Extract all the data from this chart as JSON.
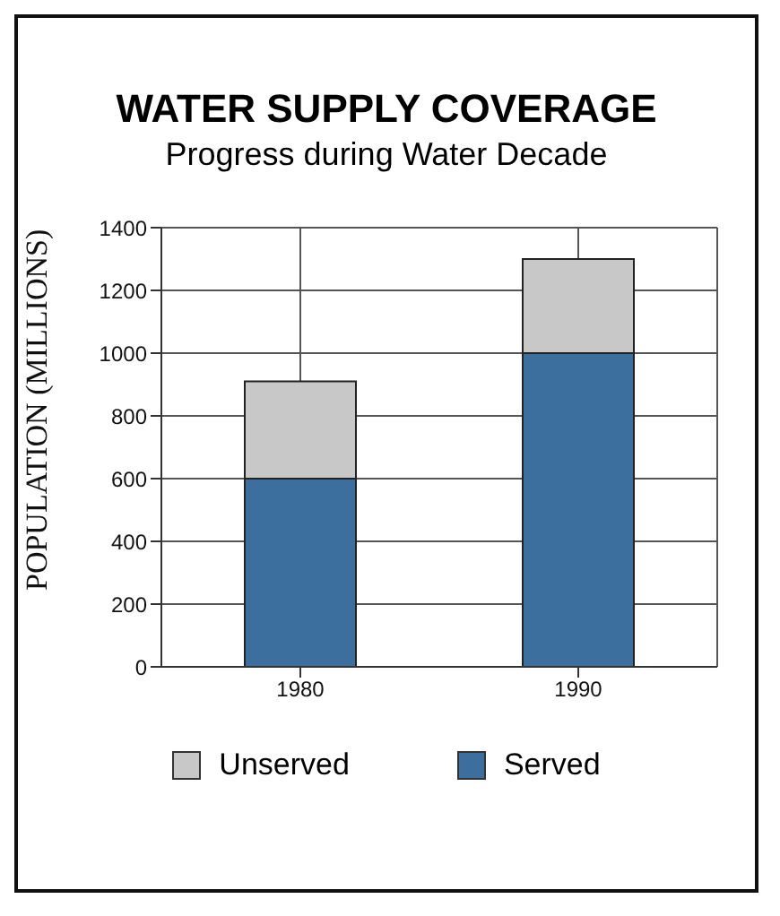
{
  "chart_data": {
    "type": "bar",
    "title": "WATER SUPPLY COVERAGE",
    "subtitle": "Progress during Water Decade",
    "ylabel": "POPULATION (MILLIONS)",
    "categories": [
      "1980",
      "1990"
    ],
    "stacked": true,
    "series": [
      {
        "name": "Served",
        "color": "#3d6f9e",
        "values": [
          600,
          1000
        ]
      },
      {
        "name": "Unserved",
        "color": "#c8c8c8",
        "values": [
          310,
          300
        ]
      }
    ],
    "ylim": [
      0,
      1400
    ],
    "yticks": [
      0,
      200,
      400,
      600,
      800,
      1000,
      1200,
      1400
    ],
    "grid": true,
    "legend": "bottom"
  }
}
